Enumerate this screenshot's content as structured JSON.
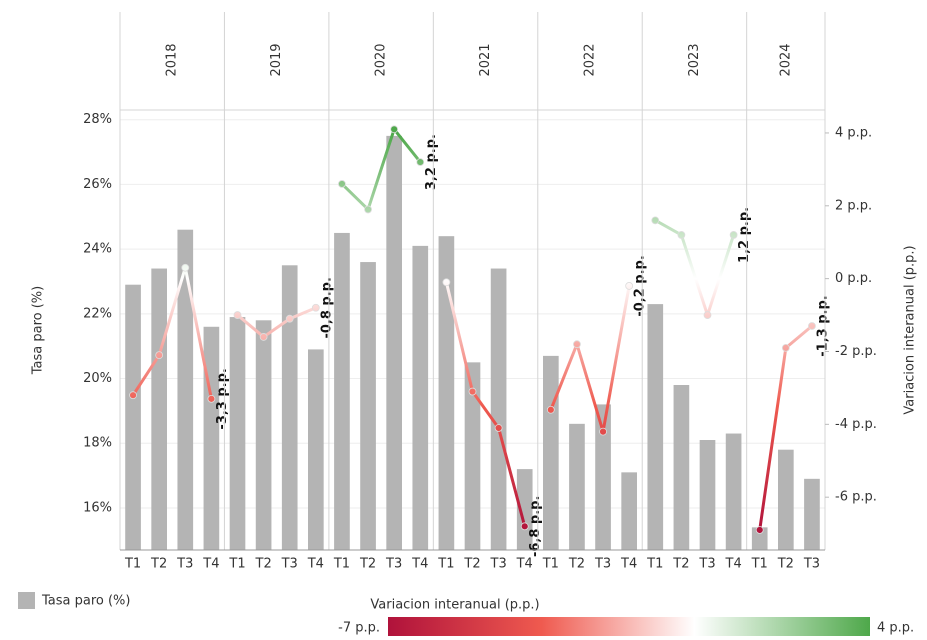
{
  "chart_data": {
    "type": "bar-line",
    "ylabel": "Tasa paro (%)",
    "y2label": "Variacion interanual (p.p.)",
    "categories": [
      [
        "2018",
        "T1"
      ],
      [
        "2018",
        "T2"
      ],
      [
        "2018",
        "T3"
      ],
      [
        "2018",
        "T4"
      ],
      [
        "2019",
        "T1"
      ],
      [
        "2019",
        "T2"
      ],
      [
        "2019",
        "T3"
      ],
      [
        "2019",
        "T4"
      ],
      [
        "2020",
        "T1"
      ],
      [
        "2020",
        "T2"
      ],
      [
        "2020",
        "T3"
      ],
      [
        "2020",
        "T4"
      ],
      [
        "2021",
        "T1"
      ],
      [
        "2021",
        "T2"
      ],
      [
        "2021",
        "T3"
      ],
      [
        "2021",
        "T4"
      ],
      [
        "2022",
        "T1"
      ],
      [
        "2022",
        "T2"
      ],
      [
        "2022",
        "T3"
      ],
      [
        "2022",
        "T4"
      ],
      [
        "2023",
        "T1"
      ],
      [
        "2023",
        "T2"
      ],
      [
        "2023",
        "T3"
      ],
      [
        "2023",
        "T4"
      ],
      [
        "2024",
        "T1"
      ],
      [
        "2024",
        "T2"
      ],
      [
        "2024",
        "T3"
      ]
    ],
    "series": [
      {
        "name": "Tasa paro (%)",
        "color": "#b4b4b4",
        "values": [
          22.9,
          23.4,
          24.6,
          21.6,
          21.9,
          21.8,
          23.5,
          20.9,
          24.5,
          23.6,
          27.5,
          24.1,
          24.4,
          20.5,
          23.4,
          17.2,
          20.7,
          18.6,
          19.2,
          17.1,
          22.3,
          19.8,
          18.1,
          18.3,
          15.4,
          17.8,
          16.9
        ]
      },
      {
        "name": "Variacion interanual (p.p.)",
        "axis": "y2",
        "values": [
          -3.2,
          -2.1,
          0.3,
          -3.3,
          -1.0,
          -1.6,
          -1.1,
          -0.8,
          2.6,
          1.9,
          4.1,
          3.2,
          -0.1,
          -3.1,
          -4.1,
          -6.8,
          -3.6,
          -1.8,
          -4.2,
          -0.2,
          1.6,
          1.2,
          -1.0,
          1.2,
          -6.9,
          -1.9,
          -1.3
        ],
        "value_labels": [
          null,
          null,
          null,
          "-3,3 p.p.",
          null,
          null,
          null,
          "-0,8 p.p.",
          null,
          null,
          null,
          "3,2 p.p.",
          null,
          null,
          null,
          "-6,8 p.p.",
          null,
          null,
          null,
          "-0,2 p.p.",
          null,
          null,
          null,
          "1,2 p.p.",
          null,
          null,
          "-1,3 p.p."
        ]
      }
    ],
    "ylim": [
      14.7,
      28.3
    ],
    "yticks": [
      {
        "value": 16,
        "label": "16%"
      },
      {
        "value": 18,
        "label": "18%"
      },
      {
        "value": 20,
        "label": "20%"
      },
      {
        "value": 22,
        "label": "22%"
      },
      {
        "value": 24,
        "label": "24%"
      },
      {
        "value": 26,
        "label": "26%"
      },
      {
        "value": 28,
        "label": "28%"
      }
    ],
    "y2lim": [
      -7.45,
      4.63
    ],
    "y2ticks": [
      {
        "value": -6,
        "label": "-6 p.p."
      },
      {
        "value": -4,
        "label": "-4 p.p."
      },
      {
        "value": -2,
        "label": "-2 p.p."
      },
      {
        "value": 0,
        "label": "0 p.p."
      },
      {
        "value": 2,
        "label": "2 p.p."
      },
      {
        "value": 4,
        "label": "4 p.p."
      }
    ],
    "grid": true,
    "colorscale": {
      "ticks": [
        {
          "value": -7,
          "label": "-7 p.p."
        },
        {
          "value": 4,
          "label": "4 p.p."
        }
      ],
      "stops": [
        {
          "value": -7,
          "color": "#b0123b"
        },
        {
          "value": -3.5,
          "color": "#ef5a4f"
        },
        {
          "value": 0,
          "color": "#ffffff"
        },
        {
          "value": 4,
          "color": "#4ea84a"
        }
      ]
    }
  }
}
